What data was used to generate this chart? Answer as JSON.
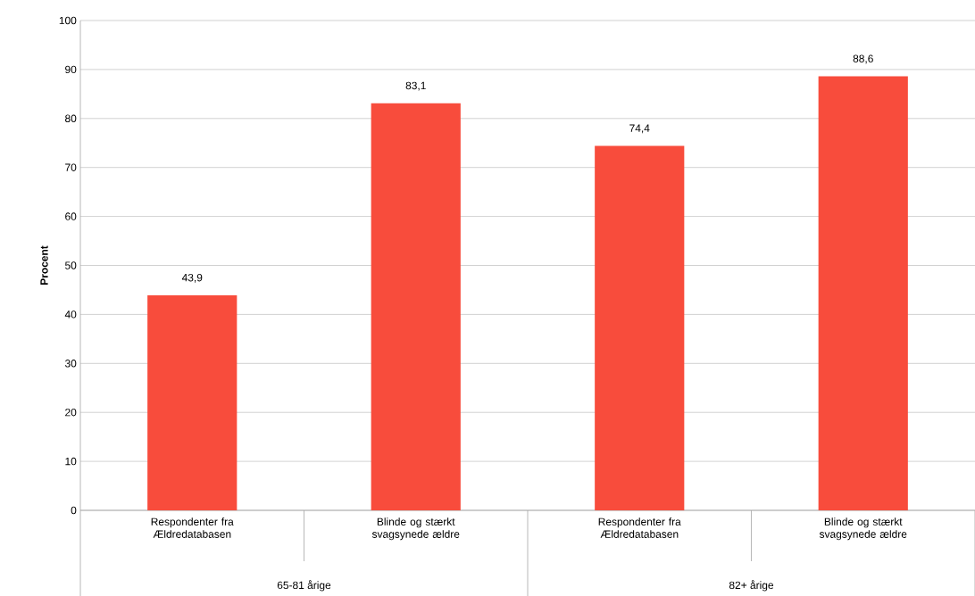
{
  "chart_data": {
    "type": "bar",
    "ylabel": "Procent",
    "categories": [
      "Respondenter fra Ældredatabasen",
      "Blinde og stærkt svagsynede ældre",
      "Respondenter fra Ældredatabasen",
      "Blinde og stærkt svagsynede ældre"
    ],
    "values": [
      43.9,
      83.1,
      74.4,
      88.6
    ],
    "value_labels": [
      "43,9",
      "83,1",
      "74,4",
      "88,6"
    ],
    "color": "#f84c3c",
    "ylim": [
      0,
      100
    ],
    "yticks": [
      0,
      10,
      20,
      30,
      40,
      50,
      60,
      70,
      80,
      90,
      100
    ],
    "grid": "y",
    "annotations": [
      "65-81 årige",
      "82+ årige"
    ]
  }
}
